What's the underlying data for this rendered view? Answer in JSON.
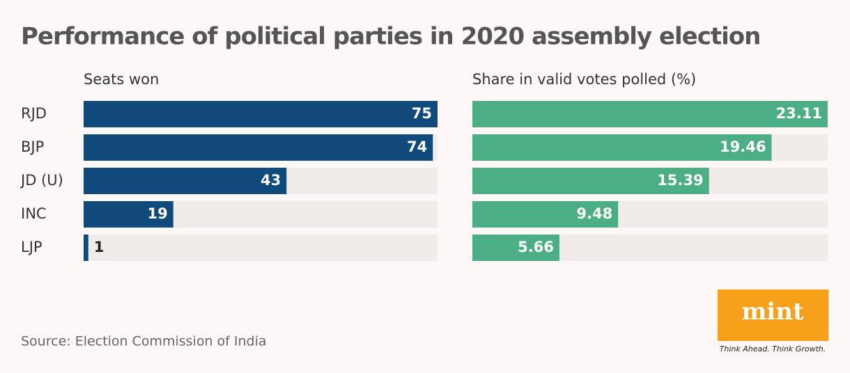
{
  "title": "Performance of political parties in 2020 assembly election",
  "source": "Source: Election Commission of India",
  "branding": {
    "logo": "mint",
    "tagline": "Think Ahead. Think Growth."
  },
  "chart_data": {
    "type": "bar",
    "categories": [
      "RJD",
      "BJP",
      "JD (U)",
      "INC",
      "LJP"
    ],
    "series": [
      {
        "name": "Seats won",
        "color": "#0f4a7b",
        "values": [
          75,
          74,
          43,
          19,
          1
        ],
        "xlim": [
          0,
          75
        ]
      },
      {
        "name": "Share in valid votes polled (%)",
        "color": "#4bae84",
        "values": [
          23.11,
          19.46,
          15.39,
          9.48,
          5.66
        ],
        "xlim": [
          0,
          23.11
        ]
      }
    ]
  }
}
